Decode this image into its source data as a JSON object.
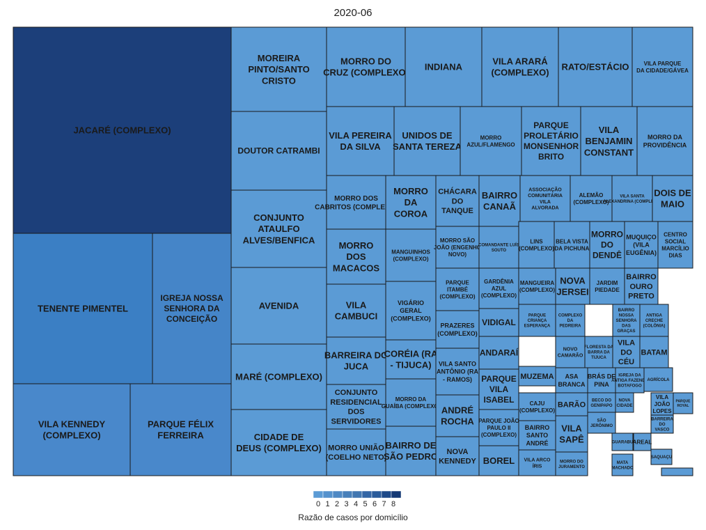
{
  "chart_data": {
    "type": "treemap",
    "title": "2020-06",
    "legend": {
      "title": "Razão de casos por domicílio",
      "ticks": [
        "0",
        "1",
        "2",
        "3",
        "4",
        "5",
        "6",
        "7",
        "8"
      ],
      "colors": [
        "#5b9bd5",
        "#5592cd",
        "#4f89c4",
        "#4880ba",
        "#4277b1",
        "#3466a5",
        "#2a5b9a",
        "#1e4a89",
        "#143975"
      ],
      "placement": "bottom"
    },
    "colors": {
      "level0": "#5b9bd5",
      "level1": "#3b7fc4",
      "level3": "#1c3f7a",
      "border": "#1a1a1a"
    },
    "tiles": [
      {
        "label": "JACARÉ (COMPLEXO)",
        "value": 7.6,
        "color": "#1c3f7a"
      },
      {
        "label": "TENENTE PIMENTEL",
        "value": 3.2,
        "color": "#3b7fc4"
      },
      {
        "label": "IGREJA NOSSA SENHORA DA CONCEIÇÃO",
        "value": 2.3,
        "color": "#4585c8"
      },
      {
        "label": "VILA KENNEDY (COMPLEXO)",
        "value": 2.2,
        "color": "#4988cb"
      },
      {
        "label": "PARQUE FÉLIX FERREIRA",
        "value": 2.2,
        "color": "#4988cb"
      },
      {
        "label": "MOREIRA PINTO/SANTO CRISTO",
        "value": 1.4,
        "color": "#5b9bd5"
      },
      {
        "label": "DOUTOR CATRAMBI",
        "value": 1.4,
        "color": "#5b9bd5"
      },
      {
        "label": "CONJUNTO ATAULFO ALVES/BENFICA",
        "value": 1.4,
        "color": "#5b9bd5"
      },
      {
        "label": "AVENIDA",
        "value": 1.4,
        "color": "#5b9bd5"
      },
      {
        "label": "MARÉ (COMPLEXO)",
        "value": 1.3,
        "color": "#5b9bd5"
      },
      {
        "label": "CIDADE DE DEUS (COMPLEXO)",
        "value": 1.2,
        "color": "#5b9bd5"
      },
      {
        "label": "MORRO DO CRUZ (COMPLEXO)",
        "value": 1.0,
        "color": "#5b9bd5"
      },
      {
        "label": "INDIANA",
        "value": 1.0,
        "color": "#5b9bd5"
      },
      {
        "label": "VILA ARARÁ (COMPLEXO)",
        "value": 1.0,
        "color": "#5b9bd5"
      },
      {
        "label": "RATO/ESTÁCIO",
        "value": 1.0,
        "color": "#5b9bd5"
      },
      {
        "label": "VILA PARQUE DA CIDADE/GÁVEA",
        "value": 1.0,
        "color": "#5b9bd5"
      },
      {
        "label": "VILA PEREIRA DA SILVA",
        "value": 1.0,
        "color": "#5b9bd5"
      },
      {
        "label": "UNIDOS DE SANTA TEREZA",
        "value": 1.0,
        "color": "#5b9bd5"
      },
      {
        "label": "MORRO AZUL/FLAMENGO",
        "value": 1.0,
        "color": "#5b9bd5"
      },
      {
        "label": "PARQUE PROLETÁRIO MONSENHOR BRITO",
        "value": 1.0,
        "color": "#5b9bd5"
      },
      {
        "label": "VILA BENJAMIN CONSTANT",
        "value": 1.0,
        "color": "#5b9bd5"
      },
      {
        "label": "MORRO DA PROVIDÊNCIA",
        "value": 1.0,
        "color": "#5b9bd5"
      },
      {
        "label": "MORRO DOS CABRITOS (COMPLEXO)",
        "value": 0.9,
        "color": "#5b9bd5"
      },
      {
        "label": "MORRO DA COROA",
        "value": 0.9,
        "color": "#5b9bd5"
      },
      {
        "label": "CHÁCARA DO TANQUE",
        "value": 0.9,
        "color": "#5b9bd5"
      },
      {
        "label": "BAIRRO CANAÃ",
        "value": 0.9,
        "color": "#5b9bd5"
      },
      {
        "label": "ASSOCIAÇÃO COMUNITÁRIA VILA ALVORADA",
        "value": 0.9,
        "color": "#5b9bd5"
      },
      {
        "label": "ALEMÃO (COMPLEXO)",
        "value": 0.9,
        "color": "#5b9bd5"
      },
      {
        "label": "VILA SANTA ALEXANDRINA (COMPLEXO)",
        "value": 0.9,
        "color": "#5b9bd5"
      },
      {
        "label": "DOIS DE MAIO",
        "value": 0.9,
        "color": "#5b9bd5"
      },
      {
        "label": "MORRO DOS MACACOS",
        "value": 0.9,
        "color": "#5b9bd5"
      },
      {
        "label": "MANGUINHOS (COMPLEXO)",
        "value": 0.9,
        "color": "#5b9bd5"
      },
      {
        "label": "MORRO SÃO JOÃO (ENGENHO NOVO)",
        "value": 0.8,
        "color": "#5b9bd5"
      },
      {
        "label": "COMANDANTE LUÍS SOUTO",
        "value": 0.8,
        "color": "#5b9bd5"
      },
      {
        "label": "LINS (COMPLEXO)",
        "value": 0.8,
        "color": "#5b9bd5"
      },
      {
        "label": "BELA VISTA DA PICHUNA",
        "value": 0.8,
        "color": "#5b9bd5"
      },
      {
        "label": "MORRO DO DENDÊ",
        "value": 0.8,
        "color": "#5b9bd5"
      },
      {
        "label": "MUQUIÇO (VILA EUGÊNIA)",
        "value": 0.8,
        "color": "#5b9bd5"
      },
      {
        "label": "CENTRO SOCIAL MARCÍLIO DIAS",
        "value": 0.8,
        "color": "#5b9bd5"
      },
      {
        "label": "VILA CAMBUCI",
        "value": 0.8,
        "color": "#5b9bd5"
      },
      {
        "label": "VIGÁRIO GERAL (COMPLEXO)",
        "value": 0.8,
        "color": "#5b9bd5"
      },
      {
        "label": "PARQUE ITAMBÉ (COMPLEXO)",
        "value": 0.8,
        "color": "#5b9bd5"
      },
      {
        "label": "GARDÊNIA AZUL (COMPLEXO)",
        "value": 0.8,
        "color": "#5b9bd5"
      },
      {
        "label": "MANGUEIRA (COMPLEXO)",
        "value": 0.8,
        "color": "#5b9bd5"
      },
      {
        "label": "NOVA JERSEI",
        "value": 0.8,
        "color": "#5b9bd5"
      },
      {
        "label": "JARDIM PIEDADE",
        "value": 0.8,
        "color": "#5b9bd5"
      },
      {
        "label": "BAIRRO OURO PRETO",
        "value": 0.8,
        "color": "#5b9bd5"
      },
      {
        "label": "PRAZERES (COMPLEXO)",
        "value": 0.8,
        "color": "#5b9bd5"
      },
      {
        "label": "VIDIGAL",
        "value": 0.8,
        "color": "#5b9bd5"
      },
      {
        "label": "PARQUE CRIANÇA ESPERANÇA",
        "value": 0.8,
        "color": "#5b9bd5"
      },
      {
        "label": "COMPLEXO DA PEDREIRA",
        "value": 0.8,
        "color": "#5b9bd5"
      },
      {
        "label": "BAIRRO NOSSA SENHORA DAS GRAÇAS",
        "value": 0.8,
        "color": "#5b9bd5"
      },
      {
        "label": "ANTIGA CRECHE (COLÔNIA)",
        "value": 0.8,
        "color": "#5b9bd5"
      },
      {
        "label": "BARREIRA DO JUCA",
        "value": 0.8,
        "color": "#5b9bd5"
      },
      {
        "label": "CORÉIA (RA - TIJUCA)",
        "value": 0.8,
        "color": "#5b9bd5"
      },
      {
        "label": "ANDARAÍ",
        "value": 0.8,
        "color": "#5b9bd5"
      },
      {
        "label": "NOVO CAMARÃO",
        "value": 0.8,
        "color": "#5b9bd5"
      },
      {
        "label": "FLORESTA DA BARRA DA TIJUCA",
        "value": 0.8,
        "color": "#5b9bd5"
      },
      {
        "label": "VILA DO CÉU",
        "value": 0.8,
        "color": "#5b9bd5"
      },
      {
        "label": "BATAM",
        "value": 0.8,
        "color": "#5b9bd5"
      },
      {
        "label": "VILA SANTO ANTÔNIO (RA - RAMOS)",
        "value": 0.8,
        "color": "#5b9bd5"
      },
      {
        "label": "MUZEMA",
        "value": 0.8,
        "color": "#5b9bd5"
      },
      {
        "label": "ASA BRANCA",
        "value": 0.8,
        "color": "#5b9bd5"
      },
      {
        "label": "BRÁS DE PINA",
        "value": 0.8,
        "color": "#5b9bd5"
      },
      {
        "label": "IGREJA DA ANTIGA FAZENDA BOTAFOGO",
        "value": 0.8,
        "color": "#5b9bd5"
      },
      {
        "label": "AGRÍCOLA",
        "value": 0.8,
        "color": "#5b9bd5"
      },
      {
        "label": "CONJUNTO RESIDENCIAL DOS SERVIDORES",
        "value": 0.8,
        "color": "#5b9bd5"
      },
      {
        "label": "MORRO DA GUAÍBA (COMPLEXO)",
        "value": 0.8,
        "color": "#5b9bd5"
      },
      {
        "label": "PARQUE VILA ISABEL",
        "value": 0.8,
        "color": "#5b9bd5"
      },
      {
        "label": "CAJU (COMPLEXO)",
        "value": 0.8,
        "color": "#5b9bd5"
      },
      {
        "label": "BARÃO",
        "value": 0.8,
        "color": "#5b9bd5"
      },
      {
        "label": "BECO DO GENIPAPO",
        "value": 0.8,
        "color": "#5b9bd5"
      },
      {
        "label": "NOVA CIDADE",
        "value": 0.8,
        "color": "#5b9bd5"
      },
      {
        "label": "VILA JOÃO LOPES",
        "value": 0.8,
        "color": "#5b9bd5"
      },
      {
        "label": "PARQUE ROYAL",
        "value": 0.8,
        "color": "#5b9bd5"
      },
      {
        "label": "ANDRÉ ROCHA",
        "value": 0.8,
        "color": "#5b9bd5"
      },
      {
        "label": "PARQUE JOÃO PAULO II (COMPLEXO)",
        "value": 0.8,
        "color": "#5b9bd5"
      },
      {
        "label": "SÃO JERÔNIMO",
        "value": 0.8,
        "color": "#5b9bd5"
      },
      {
        "label": "BARREIRA DO VASCO",
        "value": 0.8,
        "color": "#5b9bd5"
      },
      {
        "label": "MORRO UNIÃO (COELHO NETO)",
        "value": 0.8,
        "color": "#5b9bd5"
      },
      {
        "label": "BAIRRO DE SÃO PEDRO",
        "value": 0.8,
        "color": "#5b9bd5"
      },
      {
        "label": "BAIRRO SANTO ANDRÉ",
        "value": 0.8,
        "color": "#5b9bd5"
      },
      {
        "label": "VILA SAPÊ",
        "value": 0.8,
        "color": "#5b9bd5"
      },
      {
        "label": "GUARABU",
        "value": 0.8,
        "color": "#5b9bd5"
      },
      {
        "label": "AREAL",
        "value": 0.8,
        "color": "#5b9bd5"
      },
      {
        "label": "SAQUAÇU",
        "value": 0.8,
        "color": "#5b9bd5"
      },
      {
        "label": "NOVA KENNEDY",
        "value": 0.8,
        "color": "#5b9bd5"
      },
      {
        "label": "BOREL",
        "value": 0.8,
        "color": "#5b9bd5"
      },
      {
        "label": "VILA ARCO ÍRIS",
        "value": 0.8,
        "color": "#5b9bd5"
      },
      {
        "label": "MORRO DO JURAMENTO",
        "value": 0.8,
        "color": "#5b9bd5"
      },
      {
        "label": "MATA MACHADO",
        "value": 0.8,
        "color": "#5b9bd5"
      },
      {
        "label": "",
        "value": 0.8,
        "color": "#5b9bd5"
      }
    ]
  }
}
